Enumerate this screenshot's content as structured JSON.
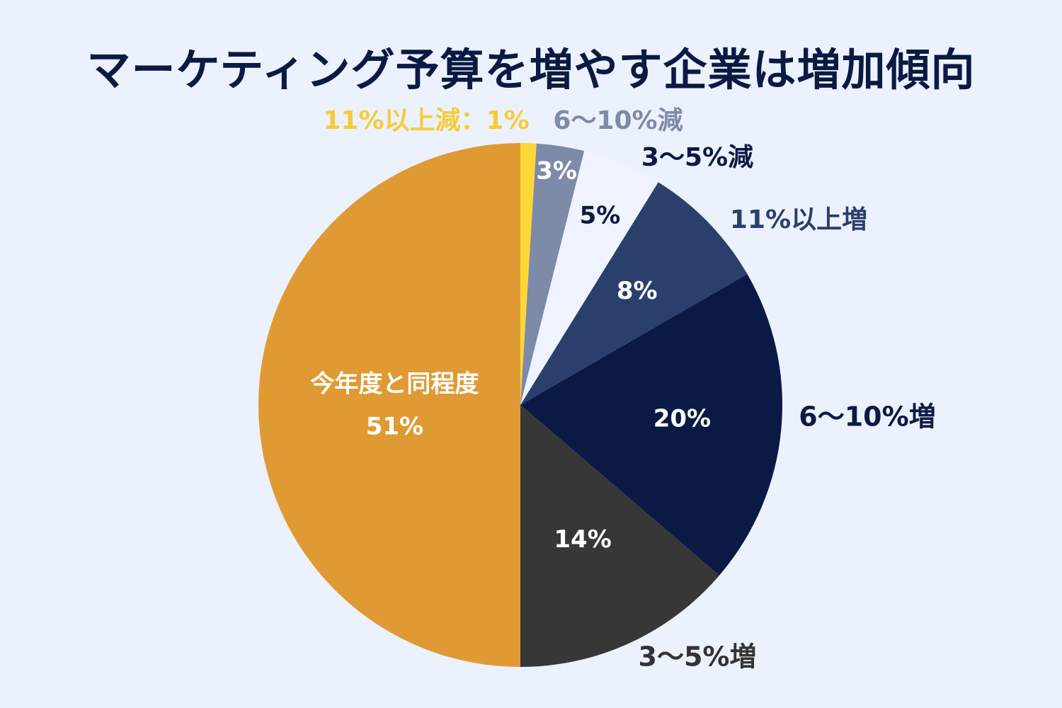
{
  "chart_data": {
    "type": "pie",
    "title": "マーケティング予算を増やす企業は増加傾向",
    "start": "12 o'clock",
    "direction": "clockwise",
    "slices": [
      {
        "name": "11%以上減",
        "value": 1,
        "value_label": "1%",
        "outside_text": "11%以上減：1%",
        "inside_text": "",
        "color": "#fdd835",
        "outside_color": "#f5cb3b",
        "inside_color": ""
      },
      {
        "name": "6〜10%減",
        "value": 3,
        "value_label": "3%",
        "outside_text": "6〜10%減",
        "inside_text": "3%",
        "color": "#7d8aa8",
        "outside_color": "#7d8aa8",
        "inside_color": "#ffffff"
      },
      {
        "name": "3〜5%減",
        "value": 5,
        "value_label": "5%",
        "outside_text": "3〜5%減",
        "inside_text": "5%",
        "color": "#eef3fe",
        "outside_color": "#0b1a43",
        "inside_color": "#0b1a43"
      },
      {
        "name": "11%以上増",
        "value": 8,
        "value_label": "8%",
        "outside_text": "11%以上増",
        "inside_text": "8%",
        "color": "#2b3f6d",
        "outside_color": "#2b3f6d",
        "inside_color": "#ffffff"
      },
      {
        "name": "6〜10%増",
        "value": 20,
        "value_label": "20%",
        "outside_text": "6〜10%増",
        "inside_text": "20%",
        "color": "#0a1a45",
        "outside_color": "#0b1a43",
        "inside_color": "#ffffff"
      },
      {
        "name": "3〜5%増",
        "value": 14,
        "value_label": "14%",
        "outside_text": "3〜5%増",
        "inside_text": "14%",
        "color": "#373737",
        "outside_color": "#333333",
        "inside_color": "#ffffff"
      },
      {
        "name": "今年度と同程度",
        "value": 51,
        "value_label": "51%",
        "outside_text": "",
        "inside_text": "今年度と同程度",
        "inside_text_2": "51%",
        "color": "#e09a33",
        "outside_color": "",
        "inside_color": "#ffffff"
      }
    ]
  }
}
